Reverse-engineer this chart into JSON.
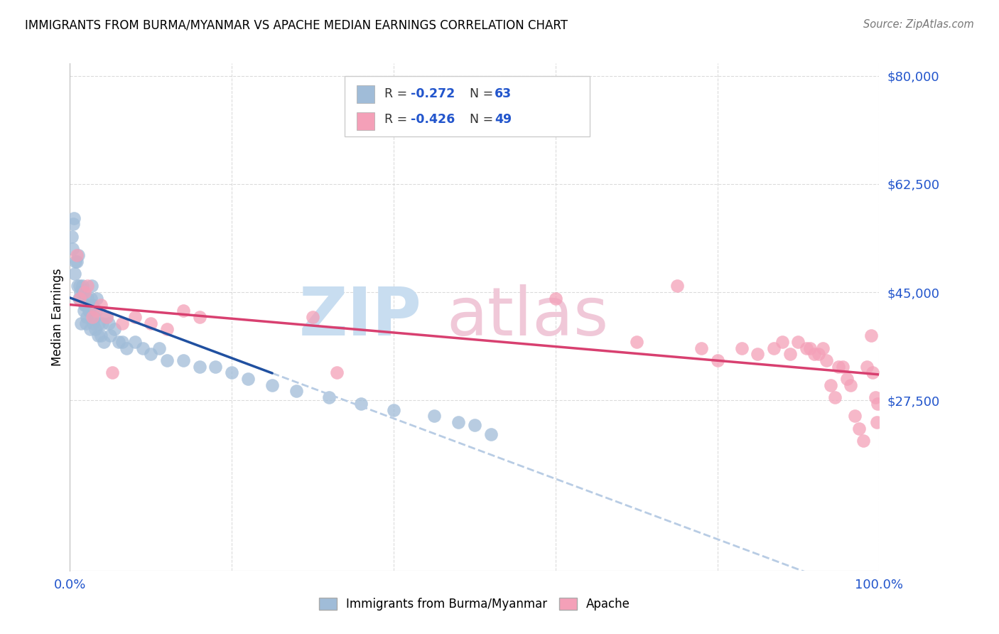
{
  "title": "IMMIGRANTS FROM BURMA/MYANMAR VS APACHE MEDIAN EARNINGS CORRELATION CHART",
  "source": "Source: ZipAtlas.com",
  "ylabel": "Median Earnings",
  "y_ticks": [
    0,
    27500,
    45000,
    62500,
    80000
  ],
  "y_tick_labels": [
    "",
    "$27,500",
    "$45,000",
    "$62,500",
    "$80,000"
  ],
  "legend1_label": "Immigrants from Burma/Myanmar",
  "legend2_label": "Apache",
  "color_blue": "#a0bcd8",
  "color_blue_line": "#2050a0",
  "color_pink": "#f4a0b8",
  "color_pink_line": "#d84070",
  "color_dashed": "#b8cce4",
  "background": "#ffffff",
  "grid_color": "#cccccc",
  "blue_x": [
    0.2,
    0.3,
    0.4,
    0.5,
    0.6,
    0.7,
    0.8,
    0.9,
    1.0,
    1.1,
    1.2,
    1.3,
    1.4,
    1.5,
    1.6,
    1.7,
    1.8,
    1.9,
    2.0,
    2.1,
    2.2,
    2.3,
    2.4,
    2.5,
    2.6,
    2.7,
    2.8,
    2.9,
    3.0,
    3.1,
    3.2,
    3.3,
    3.5,
    3.6,
    3.8,
    4.0,
    4.2,
    4.5,
    4.8,
    5.0,
    5.5,
    6.0,
    6.5,
    7.0,
    8.0,
    9.0,
    10.0,
    11.0,
    12.0,
    14.0,
    16.0,
    18.0,
    20.0,
    22.0,
    25.0,
    28.0,
    32.0,
    36.0,
    40.0,
    45.0,
    48.0,
    50.0,
    52.0
  ],
  "blue_y": [
    54000,
    52000,
    56000,
    57000,
    48000,
    50000,
    50000,
    46000,
    51000,
    44000,
    46000,
    45000,
    40000,
    46000,
    45000,
    42000,
    43000,
    43000,
    40000,
    41000,
    44000,
    42000,
    42000,
    39000,
    44000,
    46000,
    43000,
    40000,
    41000,
    39000,
    42000,
    44000,
    38000,
    40000,
    38000,
    40000,
    37000,
    41000,
    40000,
    38000,
    39000,
    37000,
    37000,
    36000,
    37000,
    36000,
    35000,
    36000,
    34000,
    34000,
    33000,
    33000,
    32000,
    31000,
    30000,
    29000,
    28000,
    27000,
    26000,
    25000,
    24000,
    23500,
    22000
  ],
  "pink_x": [
    0.8,
    1.2,
    1.8,
    2.2,
    2.8,
    3.2,
    3.8,
    4.5,
    5.2,
    6.5,
    8.0,
    10.0,
    12.0,
    14.0,
    16.0,
    30.0,
    33.0,
    60.0,
    70.0,
    75.0,
    78.0,
    80.0,
    83.0,
    85.0,
    87.0,
    88.0,
    89.0,
    90.0,
    91.0,
    91.5,
    92.0,
    92.5,
    93.0,
    93.5,
    94.0,
    94.5,
    95.0,
    95.5,
    96.0,
    96.5,
    97.0,
    97.5,
    98.0,
    98.5,
    99.0,
    99.2,
    99.5,
    99.7,
    99.8
  ],
  "pink_y": [
    51000,
    44000,
    45000,
    46000,
    41000,
    42000,
    43000,
    41000,
    32000,
    40000,
    41000,
    40000,
    39000,
    42000,
    41000,
    41000,
    32000,
    44000,
    37000,
    46000,
    36000,
    34000,
    36000,
    35000,
    36000,
    37000,
    35000,
    37000,
    36000,
    36000,
    35000,
    35000,
    36000,
    34000,
    30000,
    28000,
    33000,
    33000,
    31000,
    30000,
    25000,
    23000,
    21000,
    33000,
    38000,
    32000,
    28000,
    24000,
    27000
  ]
}
